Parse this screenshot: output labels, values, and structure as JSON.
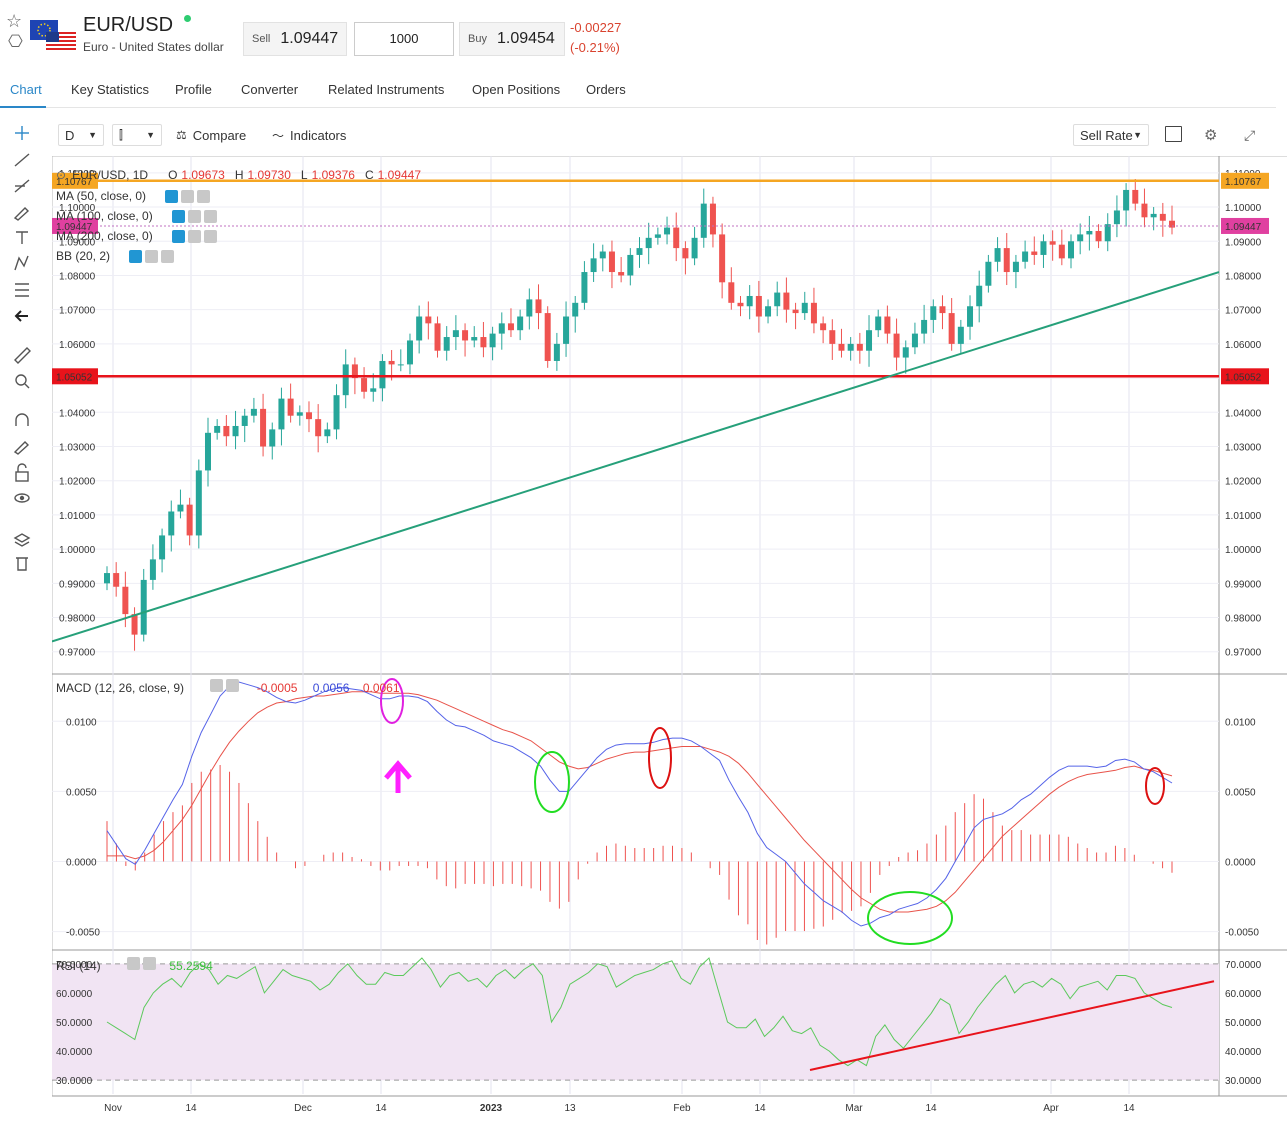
{
  "header": {
    "symbol": "EUR/USD",
    "name": "Euro - United States dollar",
    "sell_label": "Sell",
    "sell_price": "1.09447",
    "quantity": "1000",
    "buy_label": "Buy",
    "buy_price": "1.09454",
    "change": "-0.00227",
    "change_pct": "(-0.21%)",
    "status_color": "#2ecc71"
  },
  "tabs": [
    "Chart",
    "Key Statistics",
    "Profile",
    "Converter",
    "Related Instruments",
    "Open Positions",
    "Orders"
  ],
  "toolbar": {
    "interval": "D",
    "compare": "Compare",
    "indicators": "Indicators",
    "price_type": "Sell Rate"
  },
  "legend": {
    "symbol": "EUR/USD, 1D",
    "o_label": "O",
    "o": "1.09673",
    "h_label": "H",
    "h": "1.09730",
    "l_label": "L",
    "l": "1.09376",
    "c_label": "C",
    "c": "1.09447",
    "ma50": "MA (50, close, 0)",
    "ma100": "MA (100, close, 0)",
    "ma200": "MA (200, close, 0)",
    "bb": "BB (20, 2)"
  },
  "macd": {
    "label": "MACD (12, 26, close, 9)",
    "v1": "-0.0005",
    "v2": "0.0056",
    "v3": "0.0061"
  },
  "rsi": {
    "label": "RSI (14)",
    "value": "55.2594"
  },
  "colors": {
    "up": "#26a69a",
    "down": "#ef5350",
    "accent": "#2a87c8",
    "resistance": "#f5a623",
    "support": "#e8131b",
    "trend": "#26a07a",
    "macd": "#5563e8",
    "signal": "#e8534a",
    "rsi": "#5cc95c"
  },
  "chart_data": [
    {
      "type": "candlestick",
      "title": "EUR/USD, 1D",
      "y_ticks": [
        "1.11000",
        "1.10000",
        "1.09000",
        "1.08000",
        "1.07000",
        "1.06000",
        "1.05000",
        "1.04000",
        "1.03000",
        "1.02000",
        "1.01000",
        "1.00000",
        "0.99000",
        "0.98000",
        "0.97000"
      ],
      "x_ticks": [
        "Nov",
        "14",
        "Dec",
        "14",
        "2023",
        "13",
        "Feb",
        "14",
        "Mar",
        "14",
        "Apr",
        "14"
      ],
      "ylim": [
        0.967,
        1.112
      ],
      "price_labels": [
        {
          "text": "1.10767",
          "value": 1.10767,
          "color": "#f5a623"
        },
        {
          "text": "1.09447",
          "value": 1.09447,
          "color": "#e040a0"
        },
        {
          "text": "1.05052",
          "value": 1.05052,
          "color": "#e8131b"
        }
      ],
      "horizontal_lines": [
        {
          "value": 1.10767,
          "color": "#f5a623"
        },
        {
          "value": 1.05052,
          "color": "#e8131b"
        }
      ],
      "trendline": [
        {
          "x": "Nov 1",
          "y": 0.973
        },
        {
          "x": "Apr 29",
          "y": 1.081
        }
      ],
      "close_series": [
        0.993,
        0.989,
        0.981,
        0.975,
        0.991,
        0.997,
        1.004,
        1.011,
        1.013,
        1.004,
        1.023,
        1.034,
        1.036,
        1.033,
        1.036,
        1.039,
        1.041,
        1.03,
        1.035,
        1.044,
        1.039,
        1.04,
        1.038,
        1.033,
        1.035,
        1.045,
        1.054,
        1.05,
        1.046,
        1.047,
        1.055,
        1.054,
        1.054,
        1.061,
        1.068,
        1.066,
        1.058,
        1.062,
        1.064,
        1.061,
        1.062,
        1.059,
        1.063,
        1.066,
        1.064,
        1.068,
        1.073,
        1.069,
        1.055,
        1.06,
        1.068,
        1.072,
        1.081,
        1.085,
        1.087,
        1.081,
        1.08,
        1.086,
        1.088,
        1.091,
        1.092,
        1.094,
        1.088,
        1.085,
        1.091,
        1.101,
        1.092,
        1.078,
        1.072,
        1.071,
        1.074,
        1.068,
        1.071,
        1.075,
        1.07,
        1.069,
        1.072,
        1.066,
        1.064,
        1.06,
        1.058,
        1.06,
        1.058,
        1.064,
        1.068,
        1.063,
        1.056,
        1.059,
        1.063,
        1.067,
        1.071,
        1.069,
        1.06,
        1.065,
        1.071,
        1.077,
        1.084,
        1.088,
        1.081,
        1.084,
        1.087,
        1.086,
        1.09,
        1.089,
        1.085,
        1.09,
        1.092,
        1.093,
        1.09,
        1.095,
        1.099,
        1.105,
        1.101,
        1.097,
        1.098,
        1.096,
        1.094
      ]
    },
    {
      "type": "line",
      "title": "MACD (12, 26, close, 9)",
      "y_ticks": [
        "0.0100",
        "0.0050",
        "0.0000",
        "-0.0050"
      ],
      "ylim": [
        -0.0056,
        0.0128
      ],
      "series": [
        {
          "name": "MACD",
          "values": [
            0.0022,
            0.0012,
            0.0002,
            -0.0002,
            0.0008,
            0.002,
            0.0032,
            0.0044,
            0.0055,
            0.0075,
            0.0092,
            0.0105,
            0.0118,
            0.0125,
            0.0128,
            0.0126,
            0.0124,
            0.0121,
            0.0117,
            0.0114,
            0.0113,
            0.0115,
            0.0118,
            0.0121,
            0.0123,
            0.0124,
            0.0123,
            0.0122,
            0.0119,
            0.0116,
            0.0116,
            0.0118,
            0.0118,
            0.0117,
            0.0114,
            0.0107,
            0.0101,
            0.0097,
            0.0096,
            0.0093,
            0.009,
            0.0086,
            0.0084,
            0.0082,
            0.0078,
            0.0074,
            0.0068,
            0.0058,
            0.005,
            0.005,
            0.0058,
            0.0066,
            0.0074,
            0.008,
            0.0083,
            0.0084,
            0.0084,
            0.0084,
            0.0085,
            0.0087,
            0.0088,
            0.0088,
            0.0086,
            0.0082,
            0.0077,
            0.0072,
            0.0058,
            0.0046,
            0.0035,
            0.002,
            0.001,
            0.0005,
            0.0,
            -0.0008,
            -0.0016,
            -0.0022,
            -0.0028,
            -0.0032,
            -0.0036,
            -0.0042,
            -0.0046,
            -0.0044,
            -0.004,
            -0.0038,
            -0.0034,
            -0.0032,
            -0.003,
            -0.0026,
            -0.002,
            -0.0012,
            0.0,
            0.0012,
            0.0024,
            0.003,
            0.0032,
            0.0034,
            0.0038,
            0.0044,
            0.0048,
            0.0054,
            0.006,
            0.0065,
            0.0068,
            0.0068,
            0.0068,
            0.0067,
            0.0068,
            0.0072,
            0.0073,
            0.0071,
            0.0066,
            0.0064,
            0.006,
            0.0056
          ]
        },
        {
          "name": "Signal",
          "values": [
            0.0004,
            0.0004,
            0.0004,
            0.0002,
            0.0004,
            0.0008,
            0.0014,
            0.0022,
            0.003,
            0.004,
            0.0052,
            0.0064,
            0.0075,
            0.0085,
            0.0093,
            0.01,
            0.0106,
            0.011,
            0.0113,
            0.0114,
            0.0116,
            0.0117,
            0.0118,
            0.0118,
            0.0119,
            0.012,
            0.0121,
            0.0121,
            0.0121,
            0.012,
            0.012,
            0.012,
            0.012,
            0.0119,
            0.0117,
            0.0115,
            0.0112,
            0.0109,
            0.0106,
            0.0103,
            0.01,
            0.0097,
            0.0094,
            0.0092,
            0.0089,
            0.0086,
            0.0081,
            0.0076,
            0.0071,
            0.0068,
            0.0066,
            0.0067,
            0.007,
            0.0073,
            0.0075,
            0.0077,
            0.0078,
            0.0078,
            0.0079,
            0.008,
            0.0081,
            0.0082,
            0.0082,
            0.0082,
            0.008,
            0.0078,
            0.0075,
            0.007,
            0.0063,
            0.0055,
            0.0047,
            0.0039,
            0.0031,
            0.0023,
            0.0015,
            0.0008,
            0.0001,
            -0.0006,
            -0.0013,
            -0.002,
            -0.0026,
            -0.003,
            -0.0034,
            -0.0036,
            -0.0036,
            -0.0036,
            -0.0035,
            -0.0034,
            -0.0032,
            -0.0028,
            -0.0022,
            -0.0014,
            -0.0006,
            0.0002,
            0.001,
            0.0018,
            0.0024,
            0.003,
            0.0036,
            0.0042,
            0.0048,
            0.0053,
            0.0057,
            0.006,
            0.0062,
            0.0063,
            0.0064,
            0.0065,
            0.0067,
            0.0068,
            0.0066,
            0.0065,
            0.0063,
            0.0061
          ]
        }
      ]
    },
    {
      "type": "line",
      "title": "RSI (14)",
      "y_ticks": [
        "70.0000",
        "60.0000",
        "50.0000",
        "40.0000",
        "30.0000"
      ],
      "ylim": [
        28,
        72
      ],
      "series": [
        {
          "name": "RSI",
          "values": [
            50,
            48,
            46,
            44,
            55,
            60,
            63,
            65,
            62,
            67,
            70,
            68,
            63,
            66,
            65,
            67,
            69,
            60,
            64,
            68,
            66,
            65,
            64,
            61,
            63,
            67,
            70,
            66,
            63,
            63,
            67,
            66,
            66,
            69,
            72,
            68,
            62,
            66,
            67,
            64,
            65,
            62,
            66,
            68,
            65,
            68,
            70,
            66,
            50,
            55,
            63,
            65,
            67,
            70,
            69,
            62,
            64,
            66,
            67,
            68,
            70,
            71,
            65,
            63,
            69,
            72,
            61,
            50,
            48,
            48,
            51,
            45,
            48,
            52,
            47,
            46,
            48,
            42,
            40,
            37,
            35,
            37,
            35,
            45,
            49,
            44,
            41,
            45,
            49,
            53,
            58,
            56,
            46,
            50,
            55,
            59,
            63,
            66,
            60,
            63,
            64,
            62,
            65,
            63,
            58,
            62,
            63,
            64,
            61,
            66,
            66,
            65,
            60,
            58,
            56,
            55
          ]
        }
      ],
      "overbought": 70,
      "oversold": 30
    }
  ]
}
